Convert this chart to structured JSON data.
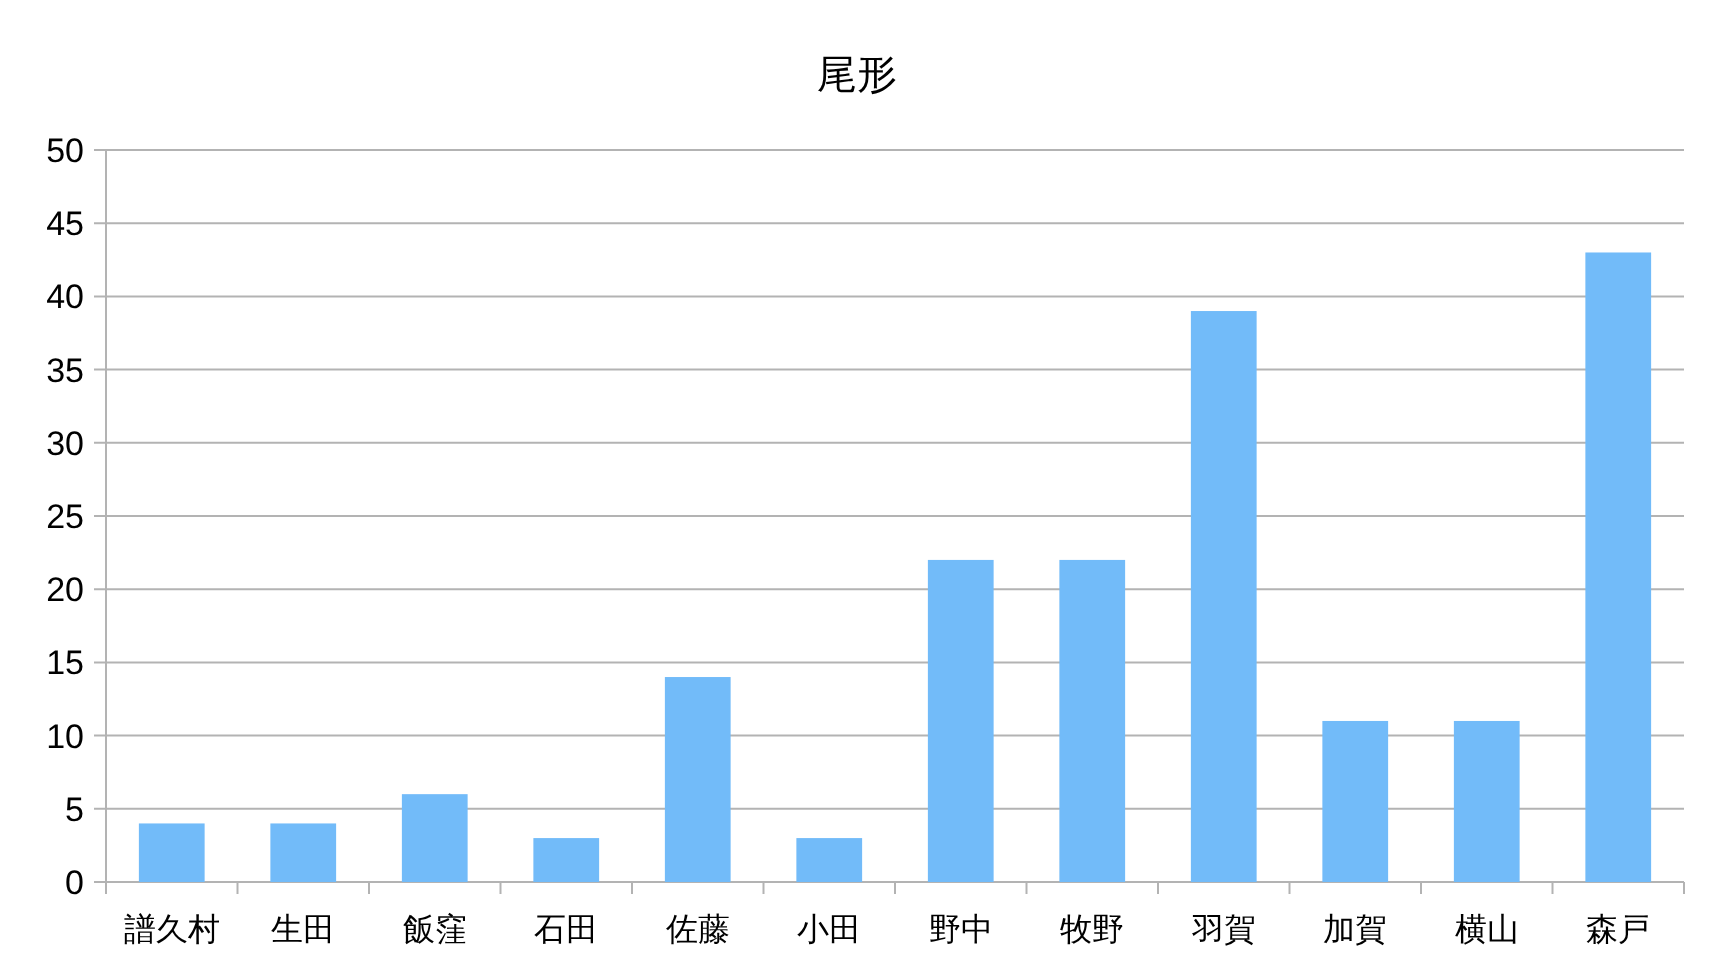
{
  "chart_data": {
    "type": "bar",
    "title": "尾形",
    "categories": [
      "譜久村",
      "生田",
      "飯窪",
      "石田",
      "佐藤",
      "小田",
      "野中",
      "牧野",
      "羽賀",
      "加賀",
      "横山",
      "森戸"
    ],
    "values": [
      4,
      4,
      6,
      3,
      14,
      3,
      22,
      22,
      39,
      11,
      11,
      43
    ],
    "color": "#72bbf9",
    "ylim": [
      0,
      50
    ],
    "yticks": [
      0,
      5,
      10,
      15,
      20,
      25,
      30,
      35,
      40,
      45,
      50
    ],
    "grid": "y"
  }
}
